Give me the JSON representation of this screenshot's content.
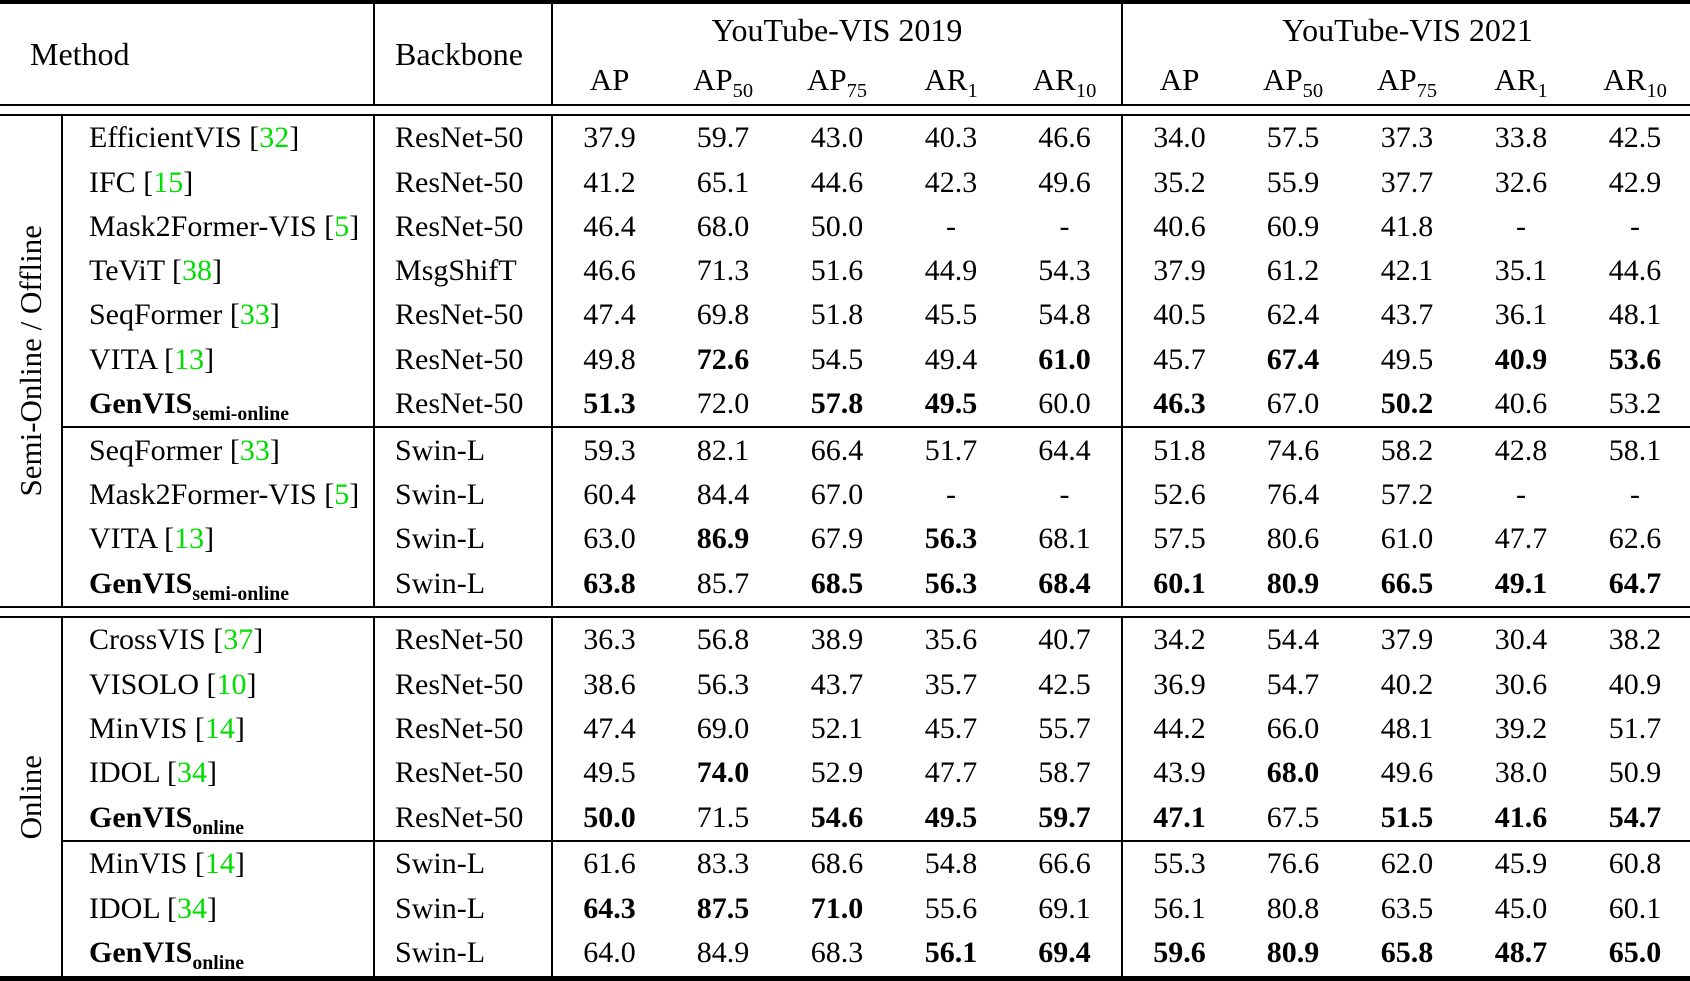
{
  "colors": {
    "reference_green": "#00dd00"
  },
  "table": {
    "header": {
      "method_label": "Method",
      "backbone_label": "Backbone",
      "groups": [
        {
          "title": "YouTube-VIS 2019"
        },
        {
          "title": "YouTube-VIS 2021"
        }
      ],
      "metrics": [
        {
          "base": "AP",
          "sub": ""
        },
        {
          "base": "AP",
          "sub": "50"
        },
        {
          "base": "AP",
          "sub": "75"
        },
        {
          "base": "AR",
          "sub": "1"
        },
        {
          "base": "AR",
          "sub": "10"
        }
      ]
    },
    "sections": [
      {
        "label": "Semi-Online / Offline",
        "blocks": [
          {
            "rows": [
              {
                "method": "EfficientVIS",
                "sub": "",
                "ref": "32",
                "method_bold": false,
                "backbone": "ResNet-50",
                "y2019": [
                  "37.9",
                  "59.7",
                  "43.0",
                  "40.3",
                  "46.6"
                ],
                "y2019_bold": [
                  0,
                  0,
                  0,
                  0,
                  0
                ],
                "y2021": [
                  "34.0",
                  "57.5",
                  "37.3",
                  "33.8",
                  "42.5"
                ],
                "y2021_bold": [
                  0,
                  0,
                  0,
                  0,
                  0
                ]
              },
              {
                "method": "IFC",
                "sub": "",
                "ref": "15",
                "method_bold": false,
                "backbone": "ResNet-50",
                "y2019": [
                  "41.2",
                  "65.1",
                  "44.6",
                  "42.3",
                  "49.6"
                ],
                "y2019_bold": [
                  0,
                  0,
                  0,
                  0,
                  0
                ],
                "y2021": [
                  "35.2",
                  "55.9",
                  "37.7",
                  "32.6",
                  "42.9"
                ],
                "y2021_bold": [
                  0,
                  0,
                  0,
                  0,
                  0
                ]
              },
              {
                "method": "Mask2Former-VIS",
                "sub": "",
                "ref": "5",
                "method_bold": false,
                "backbone": "ResNet-50",
                "y2019": [
                  "46.4",
                  "68.0",
                  "50.0",
                  "-",
                  "-"
                ],
                "y2019_bold": [
                  0,
                  0,
                  0,
                  0,
                  0
                ],
                "y2021": [
                  "40.6",
                  "60.9",
                  "41.8",
                  "-",
                  "-"
                ],
                "y2021_bold": [
                  0,
                  0,
                  0,
                  0,
                  0
                ]
              },
              {
                "method": "TeViT",
                "sub": "",
                "ref": "38",
                "method_bold": false,
                "backbone": "MsgShifT",
                "y2019": [
                  "46.6",
                  "71.3",
                  "51.6",
                  "44.9",
                  "54.3"
                ],
                "y2019_bold": [
                  0,
                  0,
                  0,
                  0,
                  0
                ],
                "y2021": [
                  "37.9",
                  "61.2",
                  "42.1",
                  "35.1",
                  "44.6"
                ],
                "y2021_bold": [
                  0,
                  0,
                  0,
                  0,
                  0
                ]
              },
              {
                "method": "SeqFormer",
                "sub": "",
                "ref": "33",
                "method_bold": false,
                "backbone": "ResNet-50",
                "y2019": [
                  "47.4",
                  "69.8",
                  "51.8",
                  "45.5",
                  "54.8"
                ],
                "y2019_bold": [
                  0,
                  0,
                  0,
                  0,
                  0
                ],
                "y2021": [
                  "40.5",
                  "62.4",
                  "43.7",
                  "36.1",
                  "48.1"
                ],
                "y2021_bold": [
                  0,
                  0,
                  0,
                  0,
                  0
                ]
              },
              {
                "method": "VITA",
                "sub": "",
                "ref": "13",
                "method_bold": false,
                "backbone": "ResNet-50",
                "y2019": [
                  "49.8",
                  "72.6",
                  "54.5",
                  "49.4",
                  "61.0"
                ],
                "y2019_bold": [
                  0,
                  1,
                  0,
                  0,
                  1
                ],
                "y2021": [
                  "45.7",
                  "67.4",
                  "49.5",
                  "40.9",
                  "53.6"
                ],
                "y2021_bold": [
                  0,
                  1,
                  0,
                  1,
                  1
                ]
              },
              {
                "method": "GenVIS",
                "sub": "semi-online",
                "ref": "",
                "method_bold": true,
                "backbone": "ResNet-50",
                "y2019": [
                  "51.3",
                  "72.0",
                  "57.8",
                  "49.5",
                  "60.0"
                ],
                "y2019_bold": [
                  1,
                  0,
                  1,
                  1,
                  0
                ],
                "y2021": [
                  "46.3",
                  "67.0",
                  "50.2",
                  "40.6",
                  "53.2"
                ],
                "y2021_bold": [
                  1,
                  0,
                  1,
                  0,
                  0
                ]
              }
            ]
          },
          {
            "rows": [
              {
                "method": "SeqFormer",
                "sub": "",
                "ref": "33",
                "method_bold": false,
                "backbone": "Swin-L",
                "y2019": [
                  "59.3",
                  "82.1",
                  "66.4",
                  "51.7",
                  "64.4"
                ],
                "y2019_bold": [
                  0,
                  0,
                  0,
                  0,
                  0
                ],
                "y2021": [
                  "51.8",
                  "74.6",
                  "58.2",
                  "42.8",
                  "58.1"
                ],
                "y2021_bold": [
                  0,
                  0,
                  0,
                  0,
                  0
                ]
              },
              {
                "method": "Mask2Former-VIS",
                "sub": "",
                "ref": "5",
                "method_bold": false,
                "backbone": "Swin-L",
                "y2019": [
                  "60.4",
                  "84.4",
                  "67.0",
                  "-",
                  "-"
                ],
                "y2019_bold": [
                  0,
                  0,
                  0,
                  0,
                  0
                ],
                "y2021": [
                  "52.6",
                  "76.4",
                  "57.2",
                  "-",
                  "-"
                ],
                "y2021_bold": [
                  0,
                  0,
                  0,
                  0,
                  0
                ]
              },
              {
                "method": "VITA",
                "sub": "",
                "ref": "13",
                "method_bold": false,
                "backbone": "Swin-L",
                "y2019": [
                  "63.0",
                  "86.9",
                  "67.9",
                  "56.3",
                  "68.1"
                ],
                "y2019_bold": [
                  0,
                  1,
                  0,
                  1,
                  0
                ],
                "y2021": [
                  "57.5",
                  "80.6",
                  "61.0",
                  "47.7",
                  "62.6"
                ],
                "y2021_bold": [
                  0,
                  0,
                  0,
                  0,
                  0
                ]
              },
              {
                "method": "GenVIS",
                "sub": "semi-online",
                "ref": "",
                "method_bold": true,
                "backbone": "Swin-L",
                "y2019": [
                  "63.8",
                  "85.7",
                  "68.5",
                  "56.3",
                  "68.4"
                ],
                "y2019_bold": [
                  1,
                  0,
                  1,
                  1,
                  1
                ],
                "y2021": [
                  "60.1",
                  "80.9",
                  "66.5",
                  "49.1",
                  "64.7"
                ],
                "y2021_bold": [
                  1,
                  1,
                  1,
                  1,
                  1
                ]
              }
            ]
          }
        ]
      },
      {
        "label": "Online",
        "blocks": [
          {
            "rows": [
              {
                "method": "CrossVIS",
                "sub": "",
                "ref": "37",
                "method_bold": false,
                "backbone": "ResNet-50",
                "y2019": [
                  "36.3",
                  "56.8",
                  "38.9",
                  "35.6",
                  "40.7"
                ],
                "y2019_bold": [
                  0,
                  0,
                  0,
                  0,
                  0
                ],
                "y2021": [
                  "34.2",
                  "54.4",
                  "37.9",
                  "30.4",
                  "38.2"
                ],
                "y2021_bold": [
                  0,
                  0,
                  0,
                  0,
                  0
                ]
              },
              {
                "method": "VISOLO",
                "sub": "",
                "ref": "10",
                "method_bold": false,
                "backbone": "ResNet-50",
                "y2019": [
                  "38.6",
                  "56.3",
                  "43.7",
                  "35.7",
                  "42.5"
                ],
                "y2019_bold": [
                  0,
                  0,
                  0,
                  0,
                  0
                ],
                "y2021": [
                  "36.9",
                  "54.7",
                  "40.2",
                  "30.6",
                  "40.9"
                ],
                "y2021_bold": [
                  0,
                  0,
                  0,
                  0,
                  0
                ]
              },
              {
                "method": "MinVIS",
                "sub": "",
                "ref": "14",
                "method_bold": false,
                "backbone": "ResNet-50",
                "y2019": [
                  "47.4",
                  "69.0",
                  "52.1",
                  "45.7",
                  "55.7"
                ],
                "y2019_bold": [
                  0,
                  0,
                  0,
                  0,
                  0
                ],
                "y2021": [
                  "44.2",
                  "66.0",
                  "48.1",
                  "39.2",
                  "51.7"
                ],
                "y2021_bold": [
                  0,
                  0,
                  0,
                  0,
                  0
                ]
              },
              {
                "method": "IDOL",
                "sub": "",
                "ref": "34",
                "method_bold": false,
                "backbone": "ResNet-50",
                "y2019": [
                  "49.5",
                  "74.0",
                  "52.9",
                  "47.7",
                  "58.7"
                ],
                "y2019_bold": [
                  0,
                  1,
                  0,
                  0,
                  0
                ],
                "y2021": [
                  "43.9",
                  "68.0",
                  "49.6",
                  "38.0",
                  "50.9"
                ],
                "y2021_bold": [
                  0,
                  1,
                  0,
                  0,
                  0
                ]
              },
              {
                "method": "GenVIS",
                "sub": "online",
                "ref": "",
                "method_bold": true,
                "backbone": "ResNet-50",
                "y2019": [
                  "50.0",
                  "71.5",
                  "54.6",
                  "49.5",
                  "59.7"
                ],
                "y2019_bold": [
                  1,
                  0,
                  1,
                  1,
                  1
                ],
                "y2021": [
                  "47.1",
                  "67.5",
                  "51.5",
                  "41.6",
                  "54.7"
                ],
                "y2021_bold": [
                  1,
                  0,
                  1,
                  1,
                  1
                ]
              }
            ]
          },
          {
            "rows": [
              {
                "method": "MinVIS",
                "sub": "",
                "ref": "14",
                "method_bold": false,
                "backbone": "Swin-L",
                "y2019": [
                  "61.6",
                  "83.3",
                  "68.6",
                  "54.8",
                  "66.6"
                ],
                "y2019_bold": [
                  0,
                  0,
                  0,
                  0,
                  0
                ],
                "y2021": [
                  "55.3",
                  "76.6",
                  "62.0",
                  "45.9",
                  "60.8"
                ],
                "y2021_bold": [
                  0,
                  0,
                  0,
                  0,
                  0
                ]
              },
              {
                "method": "IDOL",
                "sub": "",
                "ref": "34",
                "method_bold": false,
                "backbone": "Swin-L",
                "y2019": [
                  "64.3",
                  "87.5",
                  "71.0",
                  "55.6",
                  "69.1"
                ],
                "y2019_bold": [
                  1,
                  1,
                  1,
                  0,
                  0
                ],
                "y2021": [
                  "56.1",
                  "80.8",
                  "63.5",
                  "45.0",
                  "60.1"
                ],
                "y2021_bold": [
                  0,
                  0,
                  0,
                  0,
                  0
                ]
              },
              {
                "method": "GenVIS",
                "sub": "online",
                "ref": "",
                "method_bold": true,
                "backbone": "Swin-L",
                "y2019": [
                  "64.0",
                  "84.9",
                  "68.3",
                  "56.1",
                  "69.4"
                ],
                "y2019_bold": [
                  0,
                  0,
                  0,
                  1,
                  1
                ],
                "y2021": [
                  "59.6",
                  "80.9",
                  "65.8",
                  "48.7",
                  "65.0"
                ],
                "y2021_bold": [
                  1,
                  1,
                  1,
                  1,
                  1
                ]
              }
            ]
          }
        ]
      }
    ]
  }
}
